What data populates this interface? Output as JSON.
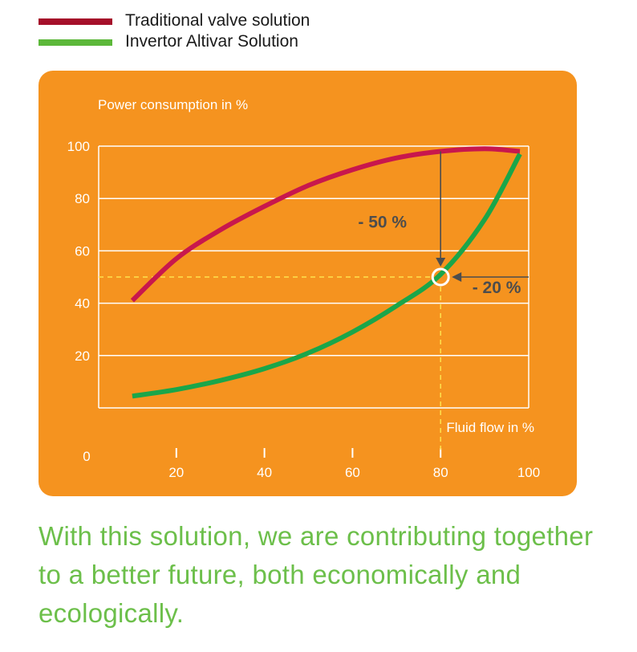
{
  "legend": {
    "items": [
      {
        "label": "Traditional valve solution",
        "color": "#a5102a"
      },
      {
        "label": "Invertor Altivar Solution",
        "color": "#5cb83a"
      }
    ]
  },
  "colors": {
    "panel": "#f5931f",
    "grid": "#ffffff",
    "axis_text": "#ffffff",
    "annotation": "#4d4d4d",
    "guide": "#ffe14d",
    "traditional_line": "#c8174d",
    "invertor_line": "#1aa64a",
    "tagline": "#6cbf4a"
  },
  "chart_data": {
    "type": "line",
    "ylabel": "Power consumption in %",
    "xlabel": "Fluid flow in %",
    "origin_label": "0",
    "xlim": [
      0,
      100
    ],
    "ylim": [
      0,
      100
    ],
    "x_ticks": [
      20,
      40,
      60,
      80,
      100
    ],
    "y_ticks": [
      20,
      40,
      60,
      80,
      100
    ],
    "grid": "horizontal",
    "series": [
      {
        "name": "Traditional valve solution",
        "x": [
          10,
          20,
          30,
          40,
          50,
          60,
          70,
          80,
          90,
          98
        ],
        "y": [
          41,
          57,
          68,
          77,
          85,
          91,
          95.5,
          98,
          99,
          98
        ]
      },
      {
        "name": "Invertor Altivar Solution",
        "x": [
          10,
          20,
          30,
          40,
          50,
          60,
          70,
          80,
          90,
          98
        ],
        "y": [
          4.5,
          7,
          10.5,
          15,
          21,
          29,
          39,
          51,
          72,
          97
        ]
      }
    ],
    "annotations": [
      {
        "text": "- 50 %",
        "x": 73,
        "y": 71
      },
      {
        "text": "- 20 %",
        "x": 92,
        "y": 46
      }
    ],
    "highlight_point": {
      "x": 80,
      "y": 50
    }
  },
  "tagline": {
    "line1": "With this solution, we are contributing together",
    "line2": "to a better future, both economically and",
    "line3": "ecologically."
  }
}
